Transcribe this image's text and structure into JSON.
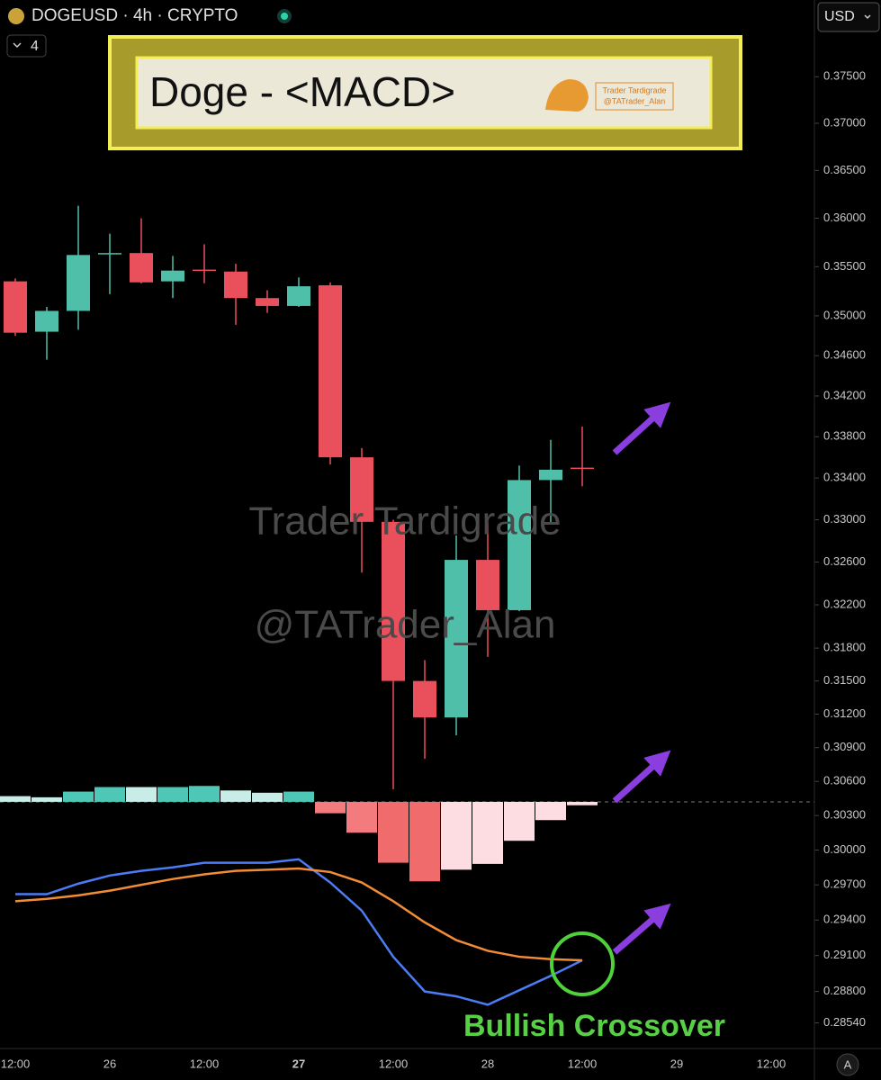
{
  "header": {
    "symbol": "DOGEUSD · 4h · CRYPTO",
    "interval_badge": "4",
    "currency": "USD",
    "auto_button": "A"
  },
  "banner": {
    "title": "Doge - <MACD>",
    "logo_name": "Trader Tardigrade",
    "logo_handle": "@TATrader_Alan"
  },
  "watermark": [
    "Trader Tardigrade",
    "@TATrader_Alan"
  ],
  "annotation": "Bullish Crossover",
  "chart_data": {
    "type": "candlestick",
    "log_scale": true,
    "ylim": [
      0.2833,
      0.3834
    ],
    "yticks": [
      {
        "value": 0.375,
        "label": "0.37500"
      },
      {
        "value": 0.37,
        "label": "0.37000"
      },
      {
        "value": 0.365,
        "label": "0.36500"
      },
      {
        "value": 0.36,
        "label": "0.36000"
      },
      {
        "value": 0.355,
        "label": "0.35500"
      },
      {
        "value": 0.35,
        "label": "0.35000"
      },
      {
        "value": 0.346,
        "label": "0.34600"
      },
      {
        "value": 0.342,
        "label": "0.34200"
      },
      {
        "value": 0.338,
        "label": "0.33800"
      },
      {
        "value": 0.334,
        "label": "0.33400"
      },
      {
        "value": 0.33,
        "label": "0.33000"
      },
      {
        "value": 0.326,
        "label": "0.32600"
      },
      {
        "value": 0.322,
        "label": "0.32200"
      },
      {
        "value": 0.318,
        "label": "0.31800"
      },
      {
        "value": 0.315,
        "label": "0.31500"
      },
      {
        "value": 0.312,
        "label": "0.31200"
      },
      {
        "value": 0.309,
        "label": "0.30900"
      },
      {
        "value": 0.306,
        "label": "0.30600"
      },
      {
        "value": 0.303,
        "label": "0.30300"
      },
      {
        "value": 0.3,
        "label": "0.30000"
      },
      {
        "value": 0.297,
        "label": "0.29700"
      },
      {
        "value": 0.294,
        "label": "0.29400"
      },
      {
        "value": 0.291,
        "label": "0.29100"
      },
      {
        "value": 0.288,
        "label": "0.28800"
      },
      {
        "value": 0.2854,
        "label": "0.28540"
      }
    ],
    "xticks": [
      "12:00",
      "26",
      "12:00",
      "27",
      "12:00",
      "28",
      "12:00",
      "29",
      "12:00"
    ],
    "up_color": "#4fbfa9",
    "down_color": "#ea4f5c",
    "candles": {
      "open": [
        0.3535,
        0.3484,
        0.3505,
        0.3563,
        0.3564,
        0.3535,
        0.3547,
        0.3545,
        0.3518,
        0.351,
        0.3531,
        0.336,
        0.3298,
        0.315,
        0.3117,
        0.3262,
        0.3215,
        0.3338,
        0.335
      ],
      "high": [
        0.3538,
        0.3509,
        0.3613,
        0.3584,
        0.36,
        0.3561,
        0.3573,
        0.3553,
        0.3526,
        0.3539,
        0.3534,
        0.3369,
        0.33,
        0.3169,
        0.3285,
        0.3297,
        0.3352,
        0.3377,
        0.339
      ],
      "low": [
        0.348,
        0.3456,
        0.3486,
        0.3522,
        0.3533,
        0.3518,
        0.3533,
        0.3491,
        0.3503,
        0.3509,
        0.3353,
        0.325,
        0.3053,
        0.308,
        0.3101,
        0.3172,
        0.3214,
        0.3297,
        0.3332
      ],
      "close": [
        0.3483,
        0.3505,
        0.3562,
        0.3564,
        0.3534,
        0.3546,
        0.3546,
        0.3518,
        0.351,
        0.353,
        0.336,
        0.3298,
        0.315,
        0.3117,
        0.3262,
        0.3215,
        0.3338,
        0.3348,
        0.3349
      ]
    },
    "macd": {
      "baseline": 0.3042,
      "histogram": {
        "values": [
          0.3047,
          0.3046,
          0.3051,
          0.3055,
          0.3055,
          0.3055,
          0.3056,
          0.3052,
          0.305,
          0.3051,
          0.3032,
          0.3015,
          0.2989,
          0.2973,
          0.2983,
          0.2988,
          0.3008,
          0.3026,
          0.3039
        ],
        "colors": [
          "#c8ede8",
          "#c8ede8",
          "#4fc7b6",
          "#4fc7b6",
          "#c8ede8",
          "#4fc7b6",
          "#4fc7b6",
          "#c8ede8",
          "#c8ede8",
          "#4fc7b6",
          "#f47b7d",
          "#f47b7d",
          "#f06b6b",
          "#f06b6b",
          "#fddde2",
          "#fddde2",
          "#fddde2",
          "#fddde2",
          "#fddde2"
        ]
      },
      "series": [
        {
          "color": "#4b7cf3",
          "values": [
            0.2962,
            0.2962,
            0.2971,
            0.2978,
            0.2982,
            0.2985,
            0.2989,
            0.2989,
            0.2989,
            0.2992,
            0.2972,
            0.2948,
            0.2909,
            0.288,
            0.2876,
            0.2869,
            0.2881,
            0.2893,
            0.2906
          ]
        },
        {
          "color": "#f28c36",
          "values": [
            0.2956,
            0.2958,
            0.2961,
            0.2965,
            0.297,
            0.2975,
            0.2979,
            0.2982,
            0.2983,
            0.2984,
            0.2981,
            0.2972,
            0.2956,
            0.2938,
            0.2923,
            0.2914,
            0.2909,
            0.2907,
            0.2906
          ]
        }
      ]
    }
  }
}
